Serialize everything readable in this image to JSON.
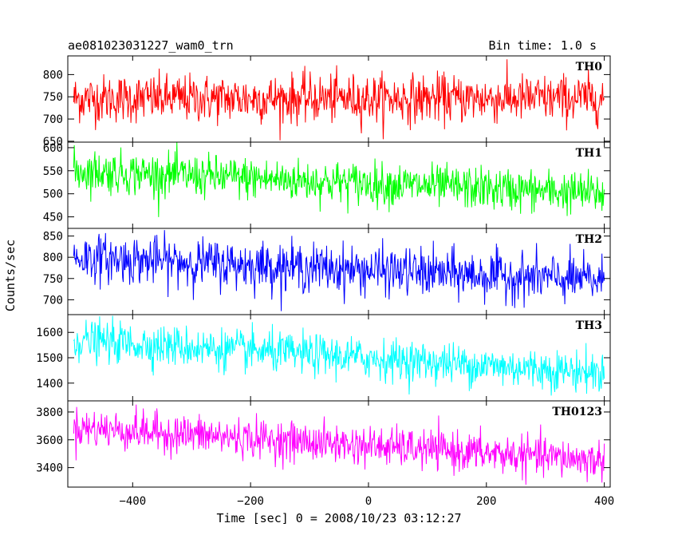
{
  "chart_data": {
    "type": "line",
    "title": "ae081023031227_wam0_trn",
    "subtitle": "Bin time: 1.0 s",
    "xlabel": "Time [sec] 0 = 2008/10/23 03:12:27",
    "ylabel": "Counts/sec",
    "xlim": [
      -510,
      410
    ],
    "x_ticks": [
      -400,
      -200,
      0,
      200,
      400
    ],
    "x_tick_labels": [
      "−400",
      "−200",
      "0",
      "200",
      "400"
    ],
    "bin_time": 1.0,
    "x_start": -500,
    "x_end": 400,
    "grid": false,
    "panels": [
      {
        "name": "TH0",
        "color": "#ff0000",
        "ylim": [
          648,
          842
        ],
        "y_ticks": [
          650,
          700,
          750,
          800
        ],
        "trend": {
          "start": 746,
          "end": 746
        },
        "noise_sigma": 27
      },
      {
        "name": "TH1",
        "color": "#00ff00",
        "ylim": [
          425,
          612
        ],
        "y_ticks": [
          450,
          500,
          550,
          600
        ],
        "trend": {
          "start": 550,
          "end": 500
        },
        "noise_sigma": 23
      },
      {
        "name": "TH2",
        "color": "#0000ff",
        "ylim": [
          665,
          868
        ],
        "y_ticks": [
          700,
          750,
          800,
          850
        ],
        "trend": {
          "start": 800,
          "end": 745
        },
        "noise_sigma": 28
      },
      {
        "name": "TH3",
        "color": "#00ffff",
        "ylim": [
          1330,
          1670
        ],
        "y_ticks": [
          1400,
          1500,
          1600
        ],
        "trend": {
          "start": 1570,
          "end": 1440
        },
        "noise_sigma": 40
      },
      {
        "name": "TH0123",
        "color": "#ff00ff",
        "ylim": [
          3260,
          3880
        ],
        "y_ticks": [
          3400,
          3600,
          3800
        ],
        "trend": {
          "start": 3690,
          "end": 3450
        },
        "noise_sigma": 70
      }
    ]
  }
}
